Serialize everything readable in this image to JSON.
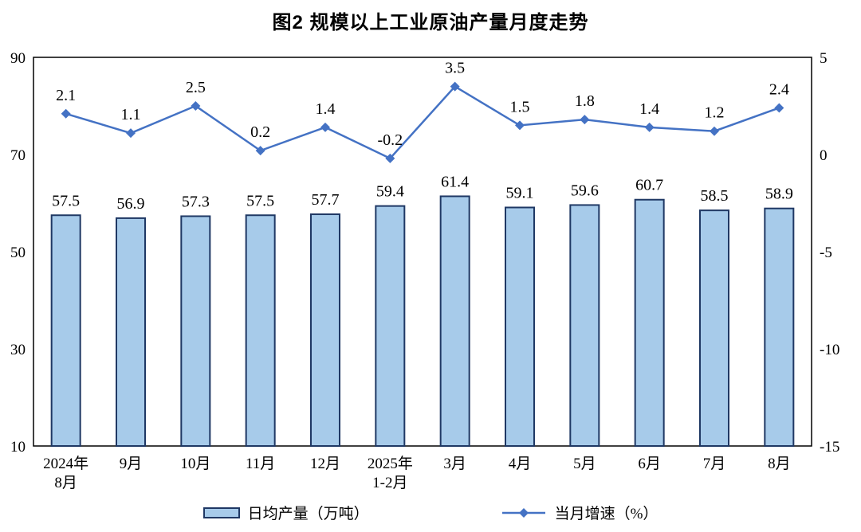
{
  "title": "图2 规模以上工业原油产量月度走势",
  "chart_data": {
    "type": "bar+line",
    "title": "图2 规模以上工业原油产量月度走势",
    "categories": [
      "2024年\n8月",
      "9月",
      "10月",
      "11月",
      "12月",
      "2025年\n1-2月",
      "3月",
      "4月",
      "5月",
      "6月",
      "7月",
      "8月"
    ],
    "series": [
      {
        "name": "日均产量（万吨）",
        "type": "bar",
        "axis": "left",
        "values": [
          57.5,
          56.9,
          57.3,
          57.5,
          57.7,
          59.4,
          61.4,
          59.1,
          59.6,
          60.7,
          58.5,
          58.9
        ],
        "fill": "#A7CBEA",
        "stroke": "#1F3864"
      },
      {
        "name": "当月增速（%）",
        "type": "line",
        "axis": "right",
        "values": [
          2.1,
          1.1,
          2.5,
          0.2,
          1.4,
          -0.2,
          3.5,
          1.5,
          1.8,
          1.4,
          1.2,
          2.4
        ],
        "color": "#4472C4"
      }
    ],
    "left_axis": {
      "min": 10,
      "max": 90,
      "ticks": [
        90,
        70,
        50,
        30,
        10
      ]
    },
    "right_axis": {
      "min": -15,
      "max": 5,
      "ticks": [
        5,
        0,
        -5,
        -10,
        -15
      ]
    },
    "grid": false,
    "legend_position": "bottom",
    "frame_color": "#000000",
    "text_color": "#000000"
  }
}
